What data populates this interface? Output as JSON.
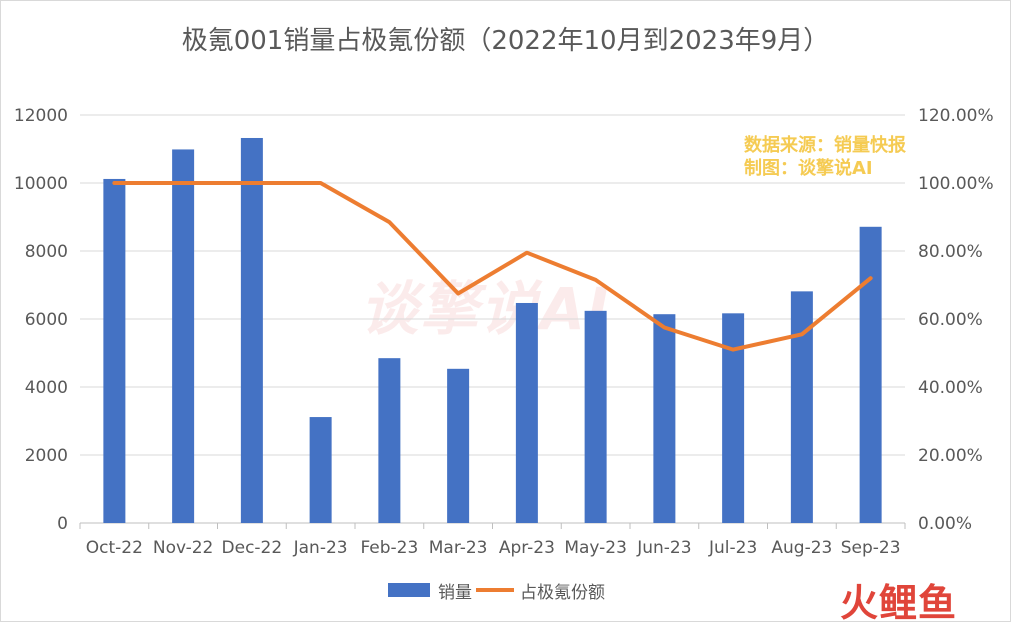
{
  "title": "极氪001销量占极氪份额（2022年10月到2023年9月）",
  "source_note": [
    "数据来源：销量快报",
    "制图：谈擎说AI"
  ],
  "watermark": "火鲤鱼",
  "bg_watermark": "谈擎说AI",
  "colors": {
    "bar": "#4472c4",
    "line": "#ed7d31"
  },
  "chart_data": {
    "type": "bar",
    "categories": [
      "Oct-22",
      "Nov-22",
      "Dec-22",
      "Jan-23",
      "Feb-23",
      "Mar-23",
      "Apr-23",
      "May-23",
      "Jun-23",
      "Jul-23",
      "Aug-23",
      "Sep-23"
    ],
    "series": [
      {
        "name": "销量",
        "type": "bar",
        "axis": "left",
        "values": [
          10119,
          10987,
          11324,
          3116,
          4848,
          4535,
          6471,
          6240,
          6141,
          6167,
          6813,
          8712
        ]
      },
      {
        "name": "占极氪份额",
        "type": "line",
        "axis": "right",
        "values": [
          100,
          100,
          100,
          100,
          88.5,
          67.5,
          79.5,
          71.5,
          57.5,
          51.0,
          55.5,
          72.0
        ]
      }
    ],
    "ylim_left": [
      0,
      12000
    ],
    "ylim_right": [
      0,
      120
    ],
    "y_ticks_left": [
      "0",
      "2000",
      "4000",
      "6000",
      "8000",
      "10000",
      "12000"
    ],
    "y_ticks_right": [
      "0.00%",
      "20.00%",
      "40.00%",
      "60.00%",
      "80.00%",
      "100.00%",
      "120.00%"
    ],
    "legend": "bottom",
    "grid": true
  }
}
